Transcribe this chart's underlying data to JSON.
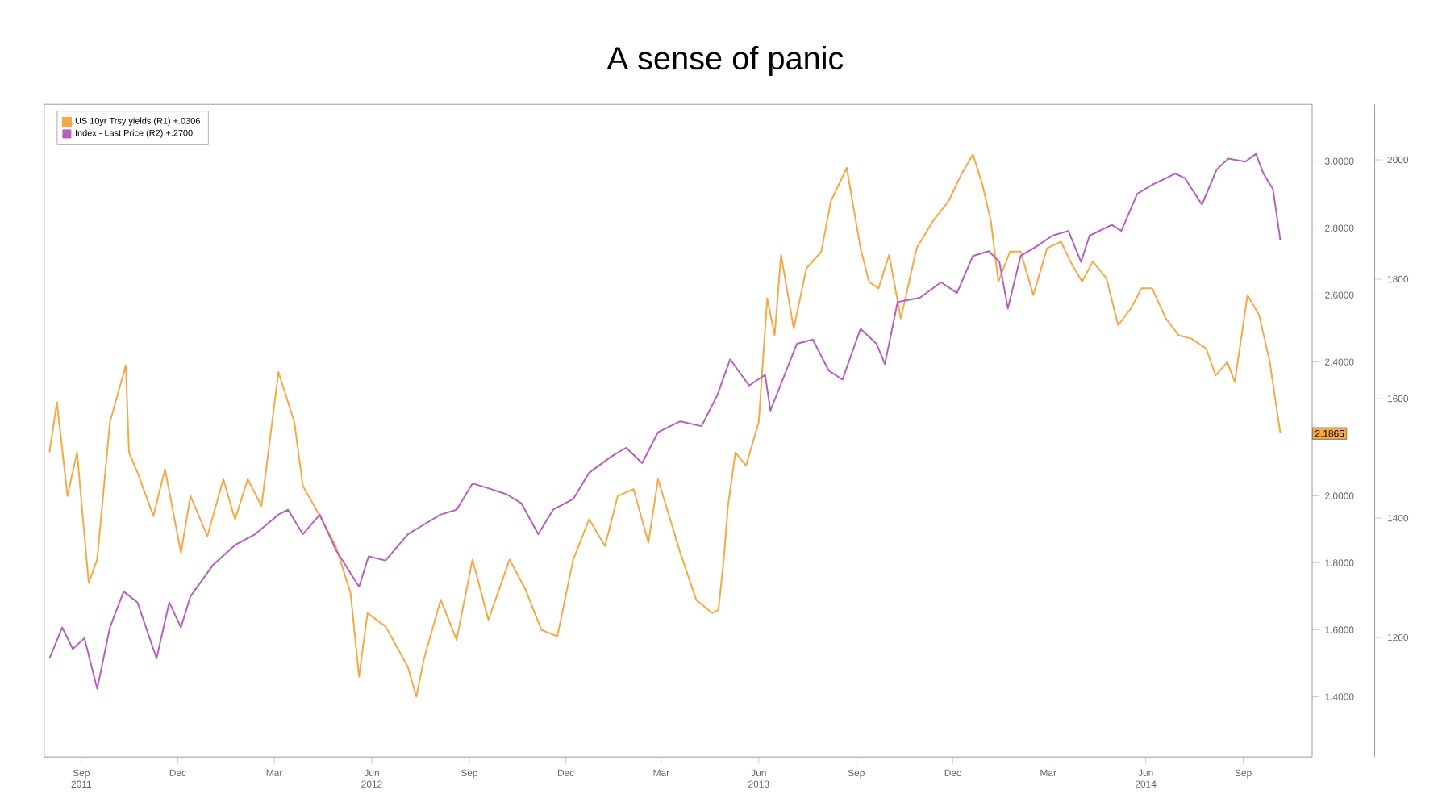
{
  "chart_data": {
    "type": "line",
    "title": "A sense of panic",
    "x": [
      "2011-08-02",
      "2011-08-09",
      "2011-08-19",
      "2011-08-28",
      "2011-09-08",
      "2011-09-16",
      "2011-09-28",
      "2011-10-13",
      "2011-10-16",
      "2011-10-24",
      "2011-11-08",
      "2011-11-19",
      "2011-12-04",
      "2011-12-13",
      "2011-12-29",
      "2012-01-13",
      "2012-01-24",
      "2012-02-05",
      "2012-02-18",
      "2012-03-05",
      "2012-03-20",
      "2012-03-28",
      "2012-04-13",
      "2012-04-28",
      "2012-05-12",
      "2012-05-20",
      "2012-05-28",
      "2012-06-14",
      "2012-07-05",
      "2012-07-13",
      "2012-07-20",
      "2012-08-05",
      "2012-08-20",
      "2012-09-04",
      "2012-09-19",
      "2012-10-09",
      "2012-10-24",
      "2012-11-08",
      "2012-11-23",
      "2012-12-08",
      "2012-12-23",
      "2013-01-07",
      "2013-01-19",
      "2013-02-03",
      "2013-02-17",
      "2013-02-26",
      "2013-03-19",
      "2013-04-03",
      "2013-04-18",
      "2013-04-24",
      "2013-04-29",
      "2013-05-03",
      "2013-05-10",
      "2013-05-20",
      "2013-06-01",
      "2013-06-09",
      "2013-06-16",
      "2013-06-22",
      "2013-07-04",
      "2013-07-16",
      "2013-07-30",
      "2013-08-08",
      "2013-08-23",
      "2013-09-05",
      "2013-09-13",
      "2013-09-22",
      "2013-10-02",
      "2013-10-13",
      "2013-10-28",
      "2013-11-12",
      "2013-11-27",
      "2013-12-09",
      "2013-12-20",
      "2013-12-29",
      "2014-01-06",
      "2014-01-13",
      "2014-01-24",
      "2014-02-03",
      "2014-02-15",
      "2014-02-28",
      "2014-03-13",
      "2014-03-22",
      "2014-04-02",
      "2014-04-12",
      "2014-04-25",
      "2014-05-06",
      "2014-05-18",
      "2014-05-28",
      "2014-06-07",
      "2014-06-20",
      "2014-07-02",
      "2014-07-14",
      "2014-07-28",
      "2014-08-06",
      "2014-08-17",
      "2014-08-24",
      "2014-09-05",
      "2014-09-16",
      "2014-09-26",
      "2014-10-06"
    ],
    "series": [
      {
        "name": "US 10yr Trsy yields (R1)   +.0306",
        "color": "#f6a845",
        "axis": "y",
        "values": [
          2.13,
          2.28,
          2.0,
          2.13,
          1.74,
          1.81,
          2.22,
          2.39,
          2.13,
          2.07,
          1.94,
          2.08,
          1.83,
          2.0,
          1.88,
          2.05,
          1.93,
          2.05,
          1.97,
          2.37,
          2.22,
          2.03,
          1.94,
          1.85,
          1.71,
          1.46,
          1.65,
          1.61,
          1.49,
          1.4,
          1.51,
          1.69,
          1.57,
          1.81,
          1.63,
          1.81,
          1.72,
          1.6,
          1.58,
          1.81,
          1.93,
          1.85,
          2.0,
          2.02,
          1.86,
          2.05,
          1.83,
          1.69,
          1.65,
          1.66,
          1.81,
          1.97,
          2.13,
          2.09,
          2.22,
          2.59,
          2.48,
          2.72,
          2.5,
          2.68,
          2.73,
          2.88,
          2.98,
          2.74,
          2.64,
          2.62,
          2.72,
          2.53,
          2.74,
          2.82,
          2.88,
          2.96,
          3.02,
          2.93,
          2.82,
          2.64,
          2.73,
          2.73,
          2.6,
          2.74,
          2.76,
          2.7,
          2.64,
          2.7,
          2.65,
          2.51,
          2.56,
          2.62,
          2.62,
          2.53,
          2.48,
          2.47,
          2.44,
          2.36,
          2.4,
          2.34,
          2.6,
          2.54,
          2.4,
          2.1865
        ]
      },
      {
        "name": "Index - Last Price (R2)   +.2700",
        "color": "#b65fc0",
        "axis": "y2",
        "x": [
          "2011-08-02",
          "2011-08-14",
          "2011-08-24",
          "2011-09-04",
          "2011-09-16",
          "2011-09-28",
          "2011-10-11",
          "2011-10-24",
          "2011-11-11",
          "2011-11-23",
          "2011-12-04",
          "2011-12-13",
          "2012-01-03",
          "2012-01-24",
          "2012-02-12",
          "2012-03-05",
          "2012-03-14",
          "2012-03-28",
          "2012-04-13",
          "2012-04-28",
          "2012-05-20",
          "2012-05-29",
          "2012-06-14",
          "2012-07-05",
          "2012-07-20",
          "2012-08-05",
          "2012-08-20",
          "2012-09-04",
          "2012-09-19",
          "2012-10-06",
          "2012-10-20",
          "2012-11-05",
          "2012-11-19",
          "2012-12-08",
          "2012-12-23",
          "2013-01-12",
          "2013-01-27",
          "2013-02-11",
          "2013-02-26",
          "2013-03-19",
          "2013-04-08",
          "2013-04-23",
          "2013-05-05",
          "2013-05-23",
          "2013-06-07",
          "2013-06-12",
          "2013-07-07",
          "2013-07-22",
          "2013-08-06",
          "2013-08-19",
          "2013-09-05",
          "2013-09-20",
          "2013-09-28",
          "2013-10-10",
          "2013-10-31",
          "2013-11-20",
          "2013-12-05",
          "2013-12-20",
          "2014-01-04",
          "2014-01-14",
          "2014-01-22",
          "2014-02-03",
          "2014-02-18",
          "2014-03-05",
          "2014-03-20",
          "2014-04-01",
          "2014-04-09",
          "2014-04-30",
          "2014-05-09",
          "2014-05-24",
          "2014-06-08",
          "2014-06-29",
          "2014-07-08",
          "2014-07-24",
          "2014-08-07",
          "2014-08-18",
          "2014-09-03",
          "2014-09-13",
          "2014-09-20",
          "2014-09-29",
          "2014-10-06"
        ],
        "values": [
          1165,
          1217,
          1181,
          1199,
          1114,
          1217,
          1277,
          1259,
          1165,
          1259,
          1217,
          1269,
          1321,
          1355,
          1373,
          1406,
          1414,
          1373,
          1406,
          1347,
          1285,
          1336,
          1329,
          1373,
          1389,
          1406,
          1414,
          1458,
          1450,
          1440,
          1425,
          1373,
          1414,
          1432,
          1476,
          1502,
          1518,
          1492,
          1544,
          1562,
          1554,
          1606,
          1666,
          1622,
          1640,
          1580,
          1692,
          1699,
          1647,
          1632,
          1717,
          1692,
          1658,
          1762,
          1769,
          1795,
          1777,
          1839,
          1847,
          1829,
          1751,
          1839,
          1855,
          1873,
          1881,
          1829,
          1873,
          1891,
          1881,
          1943,
          1959,
          1977,
          1969,
          1925,
          1984,
          2002,
          1997,
          2010,
          1977,
          1951,
          1865
        ]
      }
    ],
    "xlim": [
      "2011-07-28",
      "2014-11-05"
    ],
    "xticks": [
      {
        "value": "2011-09-01",
        "label": "Sep 2011"
      },
      {
        "value": "2011-12-01",
        "label": "Dec"
      },
      {
        "value": "2012-03-01",
        "label": "Mar"
      },
      {
        "value": "2012-06-01",
        "label": "Jun 2012"
      },
      {
        "value": "2012-09-01",
        "label": "Sep"
      },
      {
        "value": "2012-12-01",
        "label": "Dec"
      },
      {
        "value": "2013-03-01",
        "label": "Mar"
      },
      {
        "value": "2013-06-01",
        "label": "Jun 2013"
      },
      {
        "value": "2013-09-01",
        "label": "Sep"
      },
      {
        "value": "2013-12-01",
        "label": "Dec"
      },
      {
        "value": "2014-03-01",
        "label": "Mar"
      },
      {
        "value": "2014-06-01",
        "label": "Jun 2014"
      },
      {
        "value": "2014-09-01",
        "label": "Sep"
      }
    ],
    "ylim": [
      1.22,
      3.17
    ],
    "yticks": [
      {
        "value": 1.4,
        "label": "1.4000"
      },
      {
        "value": 1.6,
        "label": "1.6000"
      },
      {
        "value": 1.8,
        "label": "1.8000"
      },
      {
        "value": 2.0,
        "label": "2.0000"
      },
      {
        "value": 2.2,
        "label": null
      },
      {
        "value": 2.4,
        "label": "2.4000"
      },
      {
        "value": 2.6,
        "label": "2.6000"
      },
      {
        "value": 2.8,
        "label": "2.8000"
      },
      {
        "value": 3.0,
        "label": "3.0000"
      }
    ],
    "y2lim": [
      1000,
      2093
    ],
    "y2ticks": [
      1200,
      1400,
      1600,
      1800,
      2000
    ],
    "legend": "top left",
    "annotations": [
      {
        "text": "2.1865",
        "y": 2.1865
      }
    ]
  }
}
